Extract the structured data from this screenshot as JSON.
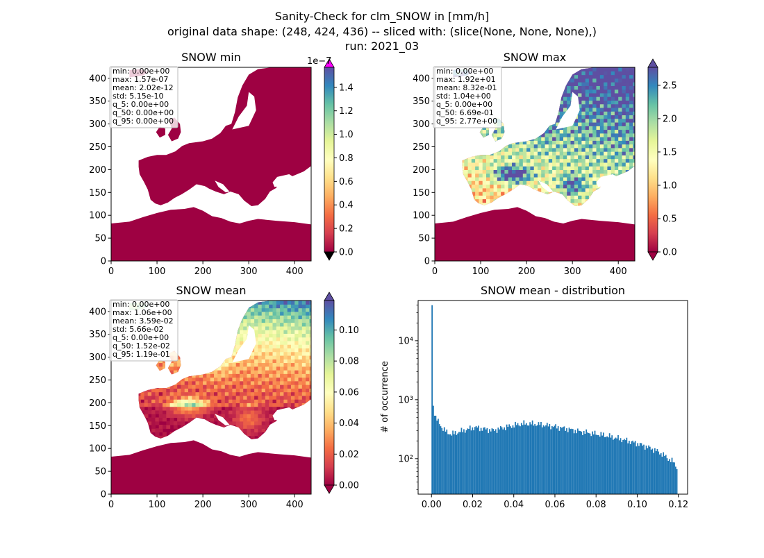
{
  "figure": {
    "title_lines": [
      "Sanity-Check for clm_SNOW in [mm/h]",
      "original data shape: (248, 424, 436) -- sliced with: (slice(None, None, None),)",
      "run: 2021_03"
    ]
  },
  "colormap": {
    "name": "Spectral",
    "stops": [
      "#9e0142",
      "#d53e4f",
      "#f46d43",
      "#fdae61",
      "#fee08b",
      "#ffffbf",
      "#e6f598",
      "#abdda4",
      "#66c2a5",
      "#3288bd",
      "#5e4fa2"
    ]
  },
  "chart_data": [
    {
      "id": "snow-min",
      "type": "heatmap",
      "title": "SNOW min",
      "xticks": [
        0,
        100,
        200,
        300,
        400
      ],
      "yticks": [
        0,
        50,
        100,
        150,
        200,
        250,
        300,
        350,
        400
      ],
      "xlim": [
        0,
        436
      ],
      "ylim": [
        0,
        424
      ],
      "colorbar": {
        "min": 0.0,
        "max": 1.57e-07,
        "ticks": [
          "0.0",
          "0.2",
          "0.4",
          "0.6",
          "0.8",
          "1.0",
          "1.2",
          "1.4"
        ],
        "tick_values": [
          0,
          0.2,
          0.4,
          0.6,
          0.8,
          1.0,
          1.2,
          1.4
        ],
        "scale_max": 1.57,
        "offset_label": "1e−7",
        "extend_over_color": "#ff00ff",
        "extend_under_color": "#000000"
      },
      "stats": [
        "min: 0.00e+00",
        "max: 1.57e-07",
        "mean: 2.02e-12",
        "std: 5.15e-10",
        "q_5: 0.00e+00",
        "q_50: 0.00e+00",
        "q_95: 0.00e+00"
      ],
      "field": "min"
    },
    {
      "id": "snow-max",
      "type": "heatmap",
      "title": "SNOW max",
      "xticks": [
        0,
        100,
        200,
        300,
        400
      ],
      "yticks": [
        0,
        50,
        100,
        150,
        200,
        250,
        300,
        350,
        400
      ],
      "xlim": [
        0,
        436
      ],
      "ylim": [
        0,
        424
      ],
      "colorbar": {
        "min": 0.0,
        "max": 2.77,
        "ticks": [
          "0.0",
          "0.5",
          "1.0",
          "1.5",
          "2.0",
          "2.5"
        ],
        "tick_values": [
          0,
          0.5,
          1.0,
          1.5,
          2.0,
          2.5
        ],
        "scale_max": 2.77,
        "extend_over_color": "#5e4fa2",
        "extend_under_color": "#9e0142"
      },
      "stats": [
        "min: 0.00e+00",
        "max: 1.92e+01",
        "mean: 8.32e-01",
        "std: 1.04e+00",
        "q_5: 0.00e+00",
        "q_50: 6.69e-01",
        "q_95: 2.77e+00"
      ],
      "field": "max"
    },
    {
      "id": "snow-mean",
      "type": "heatmap",
      "title": "SNOW mean",
      "xticks": [
        0,
        100,
        200,
        300,
        400
      ],
      "yticks": [
        0,
        50,
        100,
        150,
        200,
        250,
        300,
        350,
        400
      ],
      "xlim": [
        0,
        436
      ],
      "ylim": [
        0,
        424
      ],
      "colorbar": {
        "min": 0.0,
        "max": 0.119,
        "ticks": [
          "0.00",
          "0.02",
          "0.04",
          "0.06",
          "0.08",
          "0.10"
        ],
        "tick_values": [
          0,
          0.02,
          0.04,
          0.06,
          0.08,
          0.1
        ],
        "scale_max": 0.119,
        "extend_over_color": "#5e4fa2",
        "extend_under_color": "#9e0142"
      },
      "stats": [
        "min: 0.00e+00",
        "max: 1.06e+00",
        "mean: 3.59e-02",
        "std: 5.66e-02",
        "q_5: 0.00e+00",
        "q_50: 1.52e-02",
        "q_95: 1.19e-01"
      ],
      "field": "mean"
    },
    {
      "id": "snow-mean-distribution",
      "type": "bar",
      "title": "SNOW mean - distribution",
      "ylabel": "# of occurrence",
      "xlim": [
        -0.0065,
        0.1245
      ],
      "ylim": [
        25,
        48000
      ],
      "yscale": "log",
      "xticks": [
        0.0,
        0.02,
        0.04,
        0.06,
        0.08,
        0.1,
        0.12
      ],
      "xtick_labels": [
        "0.00",
        "0.02",
        "0.04",
        "0.06",
        "0.08",
        "0.10",
        "0.12"
      ],
      "yticks": [
        100,
        1000,
        10000
      ],
      "ytick_labels": [
        "10²",
        "10³",
        "10⁴"
      ],
      "bin_start": 0.0,
      "bin_width": 0.000595,
      "bar_color": "#1f77b4",
      "control_points": [
        [
          0,
          40000
        ],
        [
          1,
          800
        ],
        [
          2,
          600
        ],
        [
          3,
          500
        ],
        [
          5,
          420
        ],
        [
          8,
          340
        ],
        [
          12,
          280
        ],
        [
          16,
          260
        ],
        [
          20,
          275
        ],
        [
          28,
          310
        ],
        [
          35,
          340
        ],
        [
          42,
          320
        ],
        [
          50,
          300
        ],
        [
          57,
          330
        ],
        [
          65,
          360
        ],
        [
          73,
          390
        ],
        [
          82,
          390
        ],
        [
          90,
          375
        ],
        [
          100,
          350
        ],
        [
          110,
          320
        ],
        [
          120,
          290
        ],
        [
          130,
          270
        ],
        [
          140,
          250
        ],
        [
          150,
          225
        ],
        [
          160,
          200
        ],
        [
          168,
          180
        ],
        [
          175,
          160
        ],
        [
          182,
          140
        ],
        [
          188,
          120
        ],
        [
          193,
          100
        ],
        [
          197,
          88
        ],
        [
          200,
          72
        ]
      ]
    }
  ]
}
